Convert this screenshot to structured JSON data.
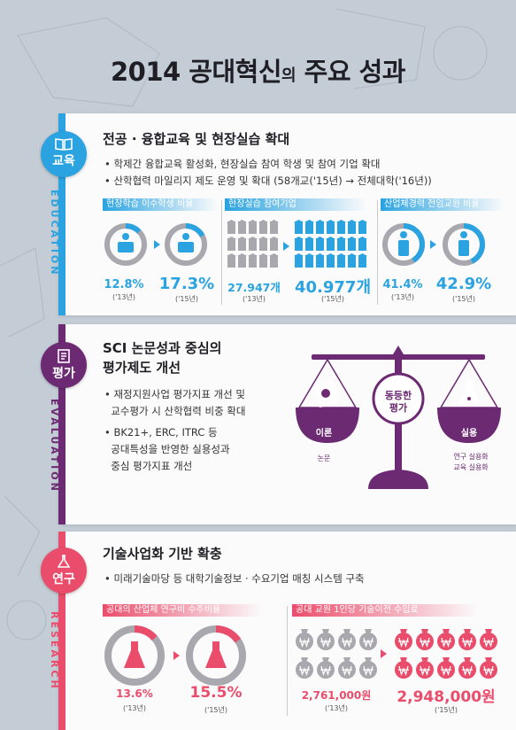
{
  "title": {
    "main": "2014 공대혁신",
    "particle": "의",
    "rest": " 주요 성과"
  },
  "education": {
    "tag": "교육",
    "vertical": "EDUCATION",
    "heading": "전공 · 융합교육 및 현장실습 확대",
    "bullets": [
      "• 학제간 융합교육 활성화, 현장실습 참여 학생 및 참여 기업 확대",
      "• 산학협력 마일리지 제도 운영 및 확대 (58개교('15년) → 전체대학('16년))"
    ],
    "stats": [
      {
        "label": "현장학습 이수학생 비율",
        "before": "12.8%",
        "before_year": "('13년)",
        "after": "17.3%",
        "after_year": "('15년)",
        "before_fraction": 0.128,
        "after_fraction": 0.173
      },
      {
        "label": "현장실습 참여기업",
        "before": "27.947개",
        "before_year": "('13년)",
        "after": "40.977개",
        "after_year": "('15년)"
      },
      {
        "label": "산업체경력 전임교원 비율",
        "before": "41.4%",
        "before_year": "('13년)",
        "after": "42.9%",
        "after_year": "('15년)",
        "before_fraction": 0.414,
        "after_fraction": 0.429
      }
    ],
    "color": "#2aa3e0"
  },
  "evaluation": {
    "tag": "평가",
    "vertical": "EVALUATION",
    "heading_line1": "SCI 논문성과 중심의",
    "heading_line2": "평가제도 개선",
    "bullets": [
      "• 재정지원사업 평가지표 개선 및",
      "  교수평가 시 산학협력 비중 확대",
      "• BK21+, ERC, ITRC 등",
      "  공대특성을 반영한 실용성과",
      "  중심 평가지표 개선"
    ],
    "scale": {
      "center_line1": "동등한",
      "center_line2": "평가",
      "left_label": "이론",
      "right_label": "실용",
      "left_caption": "논문",
      "right_caption_1": "연구 실용화",
      "right_caption_2": "교육 실용화"
    },
    "color": "#6c2a72"
  },
  "research": {
    "tag": "연구",
    "vertical": "RESEARCH",
    "heading": "기술사업화 기반 확충",
    "bullets": [
      "• 미래기술마당 등 대학기술정보 · 수요기업 매칭 시스템 구축"
    ],
    "stats": [
      {
        "label": "공대의 산업체 연구비 수주비율",
        "before": "13.6%",
        "before_year": "('13년)",
        "after": "15.5%",
        "after_year": "('15년)",
        "before_fraction": 0.136,
        "after_fraction": 0.155
      },
      {
        "label": "공대 교원 1인당 기술이전 수입료",
        "before": "2,761,000원",
        "before_year": "('13년)",
        "after": "2,948,000원",
        "after_year": "('15년)"
      }
    ],
    "color": "#ea4d6b"
  }
}
